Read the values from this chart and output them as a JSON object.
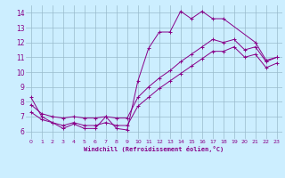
{
  "xlabel": "Windchill (Refroidissement éolien,°C)",
  "bg_color": "#cceeff",
  "line_color": "#880088",
  "grid_color": "#99bbcc",
  "xlim": [
    -0.5,
    23.5
  ],
  "ylim": [
    5.5,
    14.5
  ],
  "yticks": [
    6,
    7,
    8,
    9,
    10,
    11,
    12,
    13,
    14
  ],
  "xticks": [
    0,
    1,
    2,
    3,
    4,
    5,
    6,
    7,
    8,
    9,
    10,
    11,
    12,
    13,
    14,
    15,
    16,
    17,
    18,
    19,
    20,
    21,
    22,
    23
  ],
  "series1_x": [
    0,
    1,
    2,
    3,
    4,
    5,
    6,
    7,
    8,
    9,
    10,
    11,
    12,
    13,
    14,
    15,
    16,
    17,
    18,
    21,
    22,
    23
  ],
  "series1_y": [
    8.3,
    7.0,
    6.6,
    6.2,
    6.5,
    6.2,
    6.2,
    7.0,
    6.2,
    6.1,
    9.4,
    11.6,
    12.7,
    12.7,
    14.1,
    13.6,
    14.1,
    13.6,
    13.6,
    12.0,
    10.8,
    11.0
  ],
  "series2_x": [
    0,
    1,
    2,
    3,
    4,
    5,
    6,
    7,
    8,
    9,
    10,
    11,
    12,
    13,
    14,
    15,
    16,
    17,
    18,
    19,
    20,
    21,
    22,
    23
  ],
  "series2_y": [
    7.8,
    7.2,
    7.0,
    6.9,
    7.0,
    6.9,
    6.9,
    7.0,
    6.9,
    6.9,
    8.3,
    9.0,
    9.6,
    10.1,
    10.7,
    11.2,
    11.7,
    12.2,
    12.0,
    12.2,
    11.5,
    11.7,
    10.7,
    11.0
  ],
  "series3_x": [
    0,
    1,
    2,
    3,
    4,
    5,
    6,
    7,
    8,
    9,
    10,
    11,
    12,
    13,
    14,
    15,
    16,
    17,
    18,
    19,
    20,
    21,
    22,
    23
  ],
  "series3_y": [
    7.3,
    6.8,
    6.6,
    6.4,
    6.6,
    6.4,
    6.4,
    6.6,
    6.4,
    6.4,
    7.7,
    8.3,
    8.9,
    9.4,
    9.9,
    10.4,
    10.9,
    11.4,
    11.4,
    11.7,
    11.0,
    11.2,
    10.3,
    10.6
  ]
}
